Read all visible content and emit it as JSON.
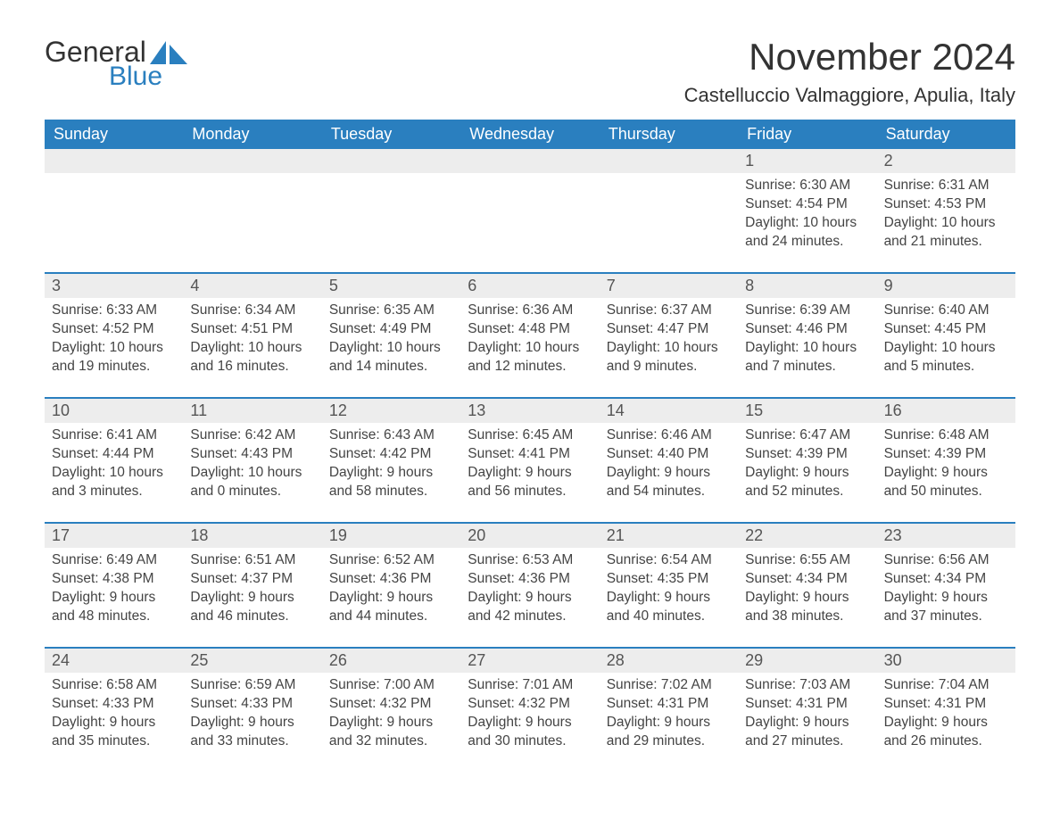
{
  "logo": {
    "general": "General",
    "blue": "Blue"
  },
  "title": "November 2024",
  "location": "Castelluccio Valmaggiore, Apulia, Italy",
  "colors": {
    "header_bg": "#2a7fbf",
    "header_text": "#ffffff",
    "daynum_bg": "#ededed",
    "border": "#2a7fbf",
    "logo_blue": "#2a7fbf",
    "text": "#333333"
  },
  "day_headers": [
    "Sunday",
    "Monday",
    "Tuesday",
    "Wednesday",
    "Thursday",
    "Friday",
    "Saturday"
  ],
  "weeks": [
    [
      {
        "day": "",
        "sunrise": "",
        "sunset": "",
        "daylight": ""
      },
      {
        "day": "",
        "sunrise": "",
        "sunset": "",
        "daylight": ""
      },
      {
        "day": "",
        "sunrise": "",
        "sunset": "",
        "daylight": ""
      },
      {
        "day": "",
        "sunrise": "",
        "sunset": "",
        "daylight": ""
      },
      {
        "day": "",
        "sunrise": "",
        "sunset": "",
        "daylight": ""
      },
      {
        "day": "1",
        "sunrise": "Sunrise: 6:30 AM",
        "sunset": "Sunset: 4:54 PM",
        "daylight": "Daylight: 10 hours and 24 minutes."
      },
      {
        "day": "2",
        "sunrise": "Sunrise: 6:31 AM",
        "sunset": "Sunset: 4:53 PM",
        "daylight": "Daylight: 10 hours and 21 minutes."
      }
    ],
    [
      {
        "day": "3",
        "sunrise": "Sunrise: 6:33 AM",
        "sunset": "Sunset: 4:52 PM",
        "daylight": "Daylight: 10 hours and 19 minutes."
      },
      {
        "day": "4",
        "sunrise": "Sunrise: 6:34 AM",
        "sunset": "Sunset: 4:51 PM",
        "daylight": "Daylight: 10 hours and 16 minutes."
      },
      {
        "day": "5",
        "sunrise": "Sunrise: 6:35 AM",
        "sunset": "Sunset: 4:49 PM",
        "daylight": "Daylight: 10 hours and 14 minutes."
      },
      {
        "day": "6",
        "sunrise": "Sunrise: 6:36 AM",
        "sunset": "Sunset: 4:48 PM",
        "daylight": "Daylight: 10 hours and 12 minutes."
      },
      {
        "day": "7",
        "sunrise": "Sunrise: 6:37 AM",
        "sunset": "Sunset: 4:47 PM",
        "daylight": "Daylight: 10 hours and 9 minutes."
      },
      {
        "day": "8",
        "sunrise": "Sunrise: 6:39 AM",
        "sunset": "Sunset: 4:46 PM",
        "daylight": "Daylight: 10 hours and 7 minutes."
      },
      {
        "day": "9",
        "sunrise": "Sunrise: 6:40 AM",
        "sunset": "Sunset: 4:45 PM",
        "daylight": "Daylight: 10 hours and 5 minutes."
      }
    ],
    [
      {
        "day": "10",
        "sunrise": "Sunrise: 6:41 AM",
        "sunset": "Sunset: 4:44 PM",
        "daylight": "Daylight: 10 hours and 3 minutes."
      },
      {
        "day": "11",
        "sunrise": "Sunrise: 6:42 AM",
        "sunset": "Sunset: 4:43 PM",
        "daylight": "Daylight: 10 hours and 0 minutes."
      },
      {
        "day": "12",
        "sunrise": "Sunrise: 6:43 AM",
        "sunset": "Sunset: 4:42 PM",
        "daylight": "Daylight: 9 hours and 58 minutes."
      },
      {
        "day": "13",
        "sunrise": "Sunrise: 6:45 AM",
        "sunset": "Sunset: 4:41 PM",
        "daylight": "Daylight: 9 hours and 56 minutes."
      },
      {
        "day": "14",
        "sunrise": "Sunrise: 6:46 AM",
        "sunset": "Sunset: 4:40 PM",
        "daylight": "Daylight: 9 hours and 54 minutes."
      },
      {
        "day": "15",
        "sunrise": "Sunrise: 6:47 AM",
        "sunset": "Sunset: 4:39 PM",
        "daylight": "Daylight: 9 hours and 52 minutes."
      },
      {
        "day": "16",
        "sunrise": "Sunrise: 6:48 AM",
        "sunset": "Sunset: 4:39 PM",
        "daylight": "Daylight: 9 hours and 50 minutes."
      }
    ],
    [
      {
        "day": "17",
        "sunrise": "Sunrise: 6:49 AM",
        "sunset": "Sunset: 4:38 PM",
        "daylight": "Daylight: 9 hours and 48 minutes."
      },
      {
        "day": "18",
        "sunrise": "Sunrise: 6:51 AM",
        "sunset": "Sunset: 4:37 PM",
        "daylight": "Daylight: 9 hours and 46 minutes."
      },
      {
        "day": "19",
        "sunrise": "Sunrise: 6:52 AM",
        "sunset": "Sunset: 4:36 PM",
        "daylight": "Daylight: 9 hours and 44 minutes."
      },
      {
        "day": "20",
        "sunrise": "Sunrise: 6:53 AM",
        "sunset": "Sunset: 4:36 PM",
        "daylight": "Daylight: 9 hours and 42 minutes."
      },
      {
        "day": "21",
        "sunrise": "Sunrise: 6:54 AM",
        "sunset": "Sunset: 4:35 PM",
        "daylight": "Daylight: 9 hours and 40 minutes."
      },
      {
        "day": "22",
        "sunrise": "Sunrise: 6:55 AM",
        "sunset": "Sunset: 4:34 PM",
        "daylight": "Daylight: 9 hours and 38 minutes."
      },
      {
        "day": "23",
        "sunrise": "Sunrise: 6:56 AM",
        "sunset": "Sunset: 4:34 PM",
        "daylight": "Daylight: 9 hours and 37 minutes."
      }
    ],
    [
      {
        "day": "24",
        "sunrise": "Sunrise: 6:58 AM",
        "sunset": "Sunset: 4:33 PM",
        "daylight": "Daylight: 9 hours and 35 minutes."
      },
      {
        "day": "25",
        "sunrise": "Sunrise: 6:59 AM",
        "sunset": "Sunset: 4:33 PM",
        "daylight": "Daylight: 9 hours and 33 minutes."
      },
      {
        "day": "26",
        "sunrise": "Sunrise: 7:00 AM",
        "sunset": "Sunset: 4:32 PM",
        "daylight": "Daylight: 9 hours and 32 minutes."
      },
      {
        "day": "27",
        "sunrise": "Sunrise: 7:01 AM",
        "sunset": "Sunset: 4:32 PM",
        "daylight": "Daylight: 9 hours and 30 minutes."
      },
      {
        "day": "28",
        "sunrise": "Sunrise: 7:02 AM",
        "sunset": "Sunset: 4:31 PM",
        "daylight": "Daylight: 9 hours and 29 minutes."
      },
      {
        "day": "29",
        "sunrise": "Sunrise: 7:03 AM",
        "sunset": "Sunset: 4:31 PM",
        "daylight": "Daylight: 9 hours and 27 minutes."
      },
      {
        "day": "30",
        "sunrise": "Sunrise: 7:04 AM",
        "sunset": "Sunset: 4:31 PM",
        "daylight": "Daylight: 9 hours and 26 minutes."
      }
    ]
  ]
}
